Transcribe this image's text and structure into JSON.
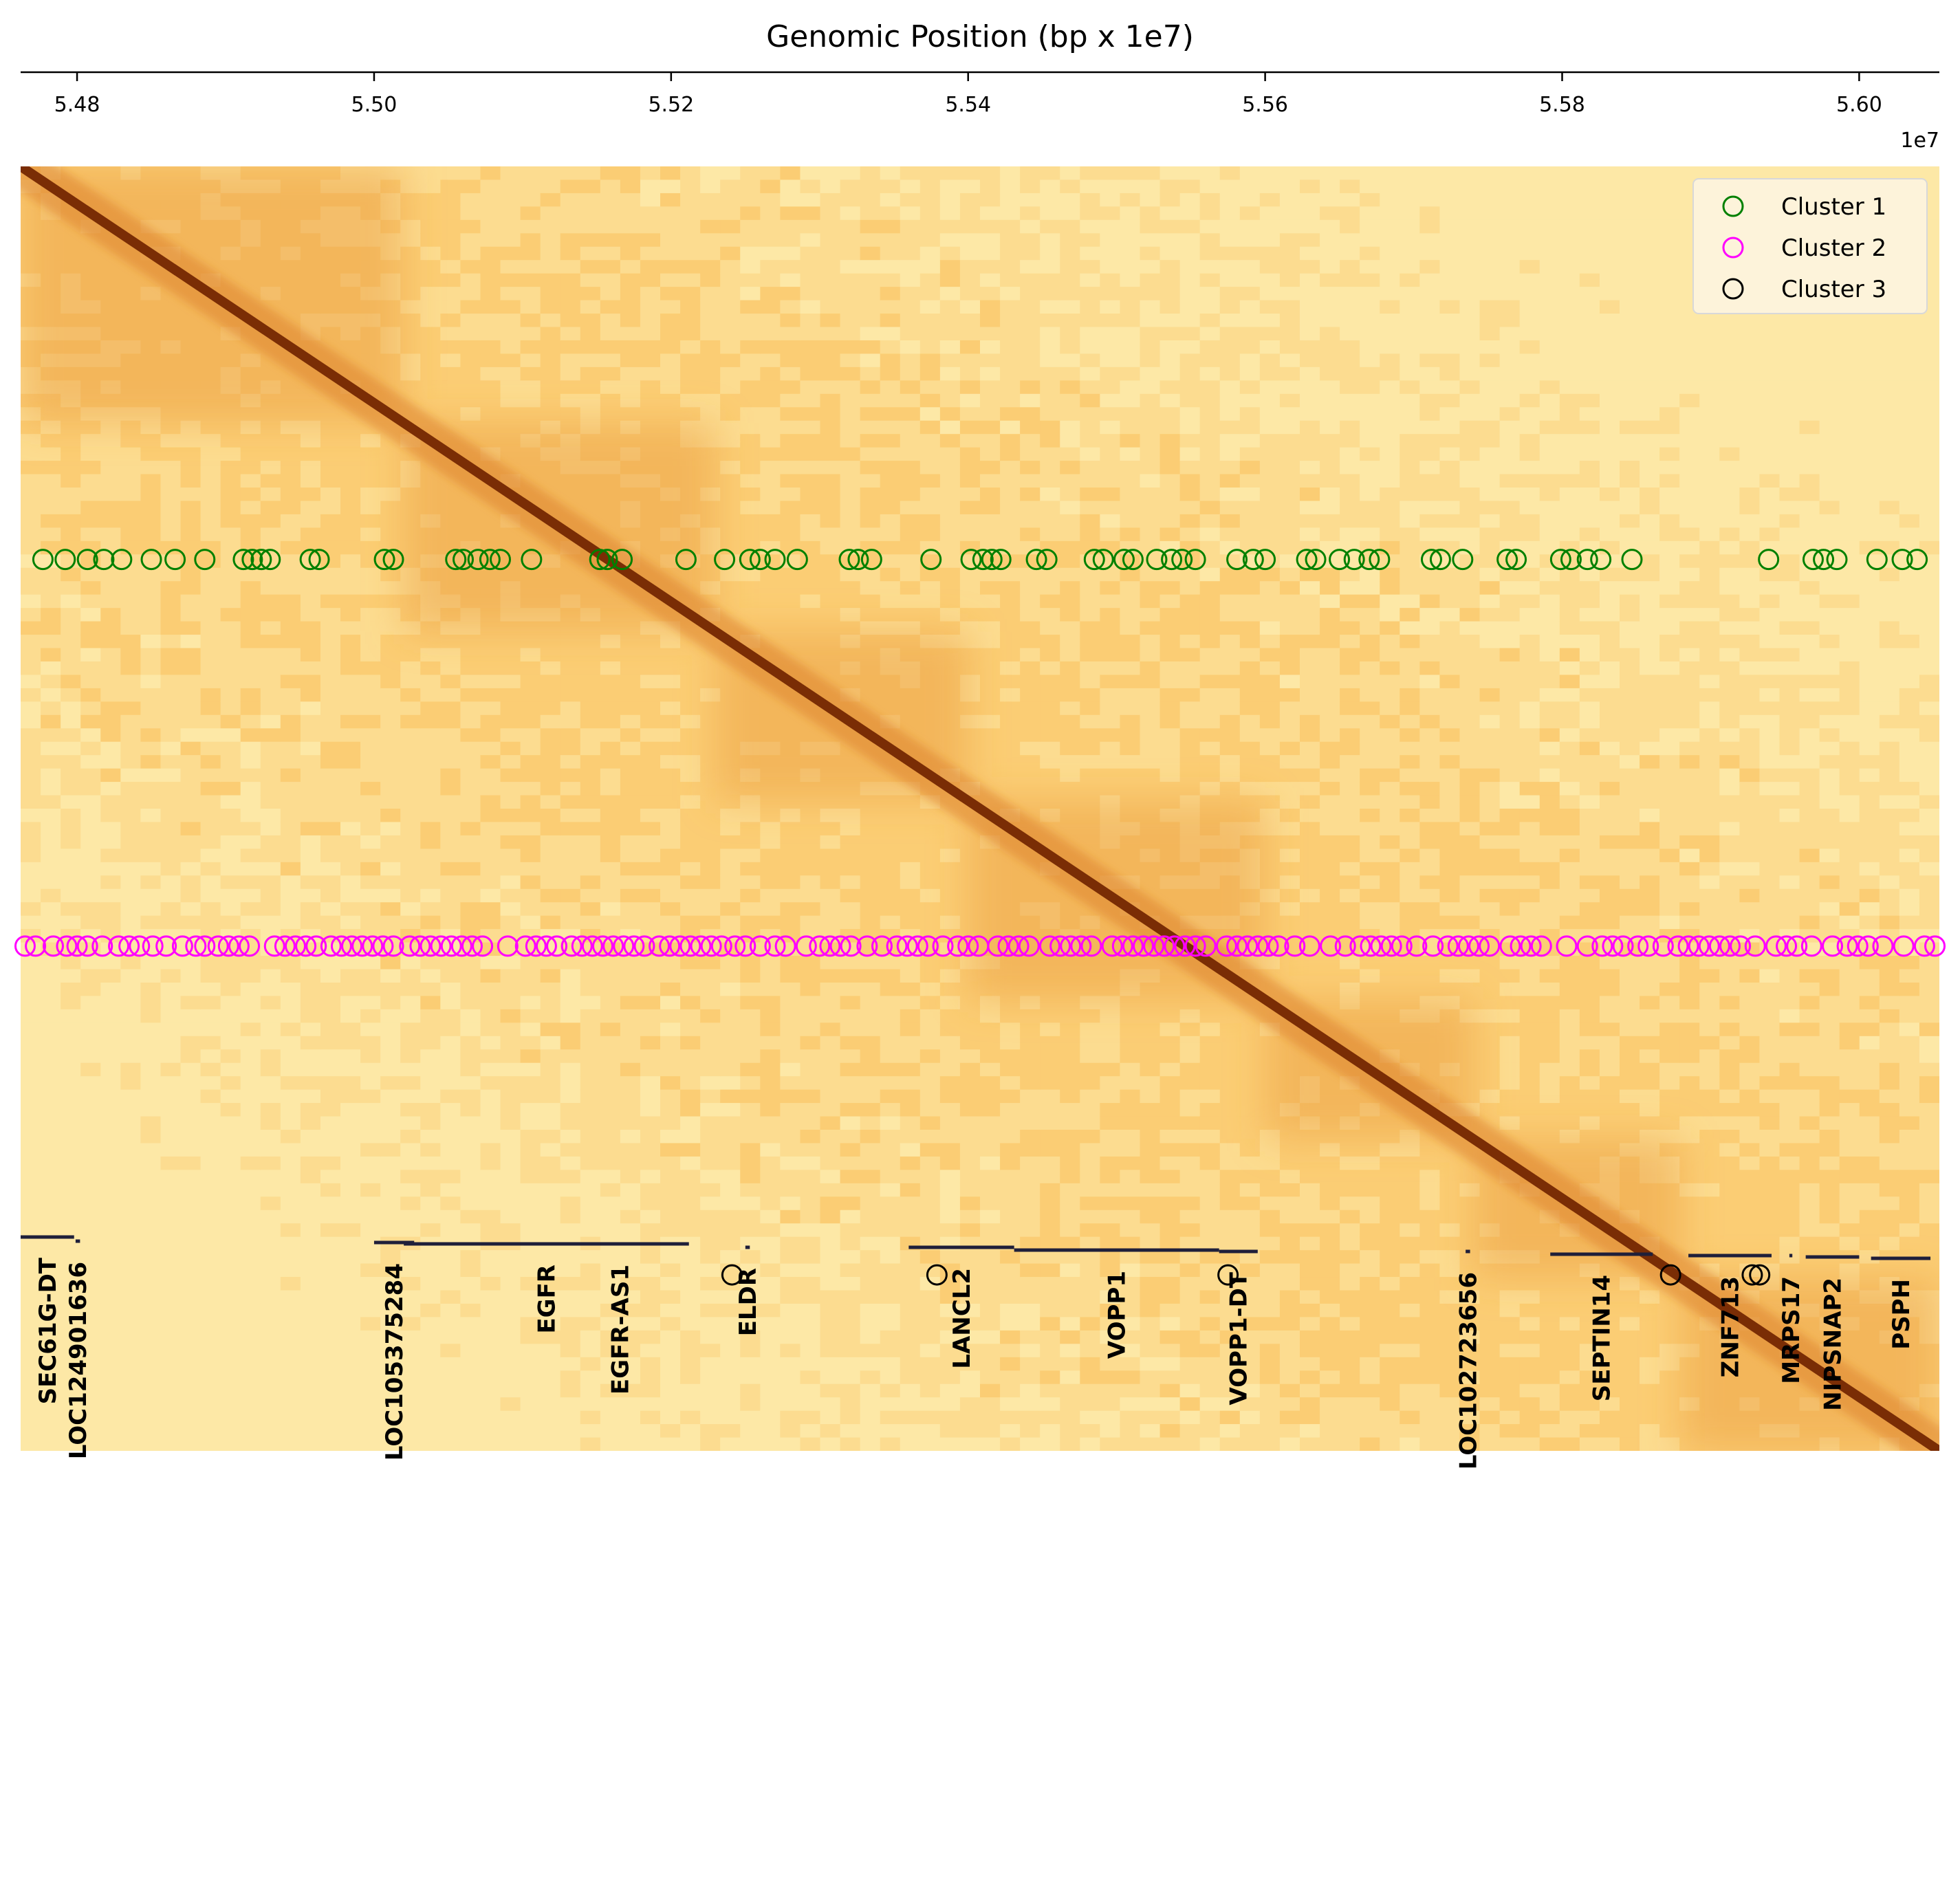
{
  "chart_data": {
    "type": "heatmap",
    "title": "Genomic Position (bp x 1e7)",
    "axis_offset_label": "1e7",
    "x_axis_position": "top",
    "xlim": [
      5.4762,
      5.6054
    ],
    "x_ticks": [
      5.48,
      5.5,
      5.52,
      5.54,
      5.56,
      5.58,
      5.6
    ],
    "x_tick_labels": [
      "5.48",
      "5.50",
      "5.52",
      "5.54",
      "5.56",
      "5.58",
      "5.60"
    ],
    "heatmap": {
      "colormap": "YlOrBr-like (light yellow to dark brown)",
      "diagonal": "strong signal along main diagonal",
      "domain_boundaries": [
        5.4762,
        5.502,
        5.523,
        5.54,
        5.56,
        5.574,
        5.588,
        5.6054
      ]
    },
    "legend": {
      "placement": "top-right",
      "entries": [
        "Cluster 1",
        "Cluster 2",
        "Cluster 3"
      ]
    },
    "series": [
      {
        "name": "Cluster 1",
        "color": "#008000",
        "marker": "open circle",
        "row": 0.306,
        "x": [
          5.4777,
          5.4792,
          5.4807,
          5.4818,
          5.483,
          5.485,
          5.4866,
          5.4886,
          5.4912,
          5.4918,
          5.4924,
          5.493,
          5.4957,
          5.4963,
          5.5007,
          5.5013,
          5.5055,
          5.506,
          5.507,
          5.5078,
          5.5085,
          5.5106,
          5.5152,
          5.5157,
          5.5167,
          5.521,
          5.5236,
          5.5253,
          5.526,
          5.527,
          5.5285,
          5.532,
          5.5326,
          5.5335,
          5.5375,
          5.5402,
          5.541,
          5.5416,
          5.5422,
          5.5446,
          5.5453,
          5.5485,
          5.5491,
          5.5505,
          5.5511,
          5.5527,
          5.5537,
          5.5544,
          5.5553,
          5.5581,
          5.5592,
          5.56,
          5.5628,
          5.5634,
          5.565,
          5.566,
          5.567,
          5.5677,
          5.5712,
          5.5718,
          5.5733,
          5.5763,
          5.5769,
          5.5799,
          5.5806,
          5.5817,
          5.5826,
          5.5847,
          5.5939,
          5.5969,
          5.5976,
          5.5985,
          5.6012,
          5.6029,
          5.6039
        ]
      },
      {
        "name": "Cluster 2",
        "color": "#ff00ff",
        "marker": "open circle",
        "row": 0.607,
        "x": [
          5.4765,
          5.4772,
          5.4784,
          5.4793,
          5.48,
          5.4807,
          5.4817,
          5.4828,
          5.4835,
          5.4842,
          5.4851,
          5.486,
          5.4871,
          5.488,
          5.4886,
          5.4895,
          5.4902,
          5.4909,
          5.4916,
          5.4933,
          5.494,
          5.4947,
          5.4954,
          5.4961,
          5.4971,
          5.4978,
          5.4985,
          5.4992,
          5.4999,
          5.5006,
          5.5013,
          5.5024,
          5.5031,
          5.5038,
          5.5045,
          5.5052,
          5.5059,
          5.5066,
          5.5073,
          5.509,
          5.5102,
          5.5109,
          5.5116,
          5.5123,
          5.5133,
          5.514,
          5.5147,
          5.5154,
          5.5161,
          5.5168,
          5.5175,
          5.5182,
          5.5192,
          5.5199,
          5.5206,
          5.5213,
          5.522,
          5.5227,
          5.5234,
          5.5243,
          5.525,
          5.526,
          5.527,
          5.5277,
          5.5291,
          5.53,
          5.5307,
          5.5314,
          5.5321,
          5.5332,
          5.5342,
          5.5352,
          5.5359,
          5.5366,
          5.5373,
          5.5383,
          5.5393,
          5.54,
          5.5407,
          5.542,
          5.5427,
          5.5434,
          5.5441,
          5.5455,
          5.5462,
          5.5469,
          5.5476,
          5.5483,
          5.5497,
          5.5504,
          5.5511,
          5.5518,
          5.5525,
          5.5532,
          5.5539,
          5.5546,
          5.5553,
          5.556,
          5.5574,
          5.5581,
          5.5588,
          5.5595,
          5.5602,
          5.5609,
          5.562,
          5.563,
          5.5644,
          5.5654,
          5.5664,
          5.5671,
          5.5678,
          5.5685,
          5.5692,
          5.5702,
          5.5713,
          5.5723,
          5.573,
          5.5737,
          5.5744,
          5.5751,
          5.5765,
          5.5772,
          5.5779,
          5.5786,
          5.5803,
          5.5817,
          5.5827,
          5.5834,
          5.5841,
          5.5851,
          5.5858,
          5.5868,
          5.5878,
          5.5885,
          5.5892,
          5.5899,
          5.5906,
          5.5913,
          5.592,
          5.593,
          5.5944,
          5.5951,
          5.5958,
          5.5968,
          5.5982,
          5.5992,
          5.5999,
          5.6006,
          5.6016,
          5.603,
          5.6044,
          5.6051
        ]
      },
      {
        "name": "Cluster 3",
        "color": "#000000",
        "marker": "open circle",
        "row": 0.863,
        "x": [
          5.5241,
          5.5379,
          5.5575,
          5.5873,
          5.5928,
          5.5933
        ]
      }
    ],
    "gene_track": {
      "genes": [
        {
          "name": "SEC61G-DT",
          "start": 5.4762,
          "end": 5.4798,
          "level": 0.21
        },
        {
          "name": "LOC124901636",
          "start": 5.4799,
          "end": 5.4802,
          "level": 0.15
        },
        {
          "name": "LOC105375284",
          "start": 5.5,
          "end": 5.5027,
          "level": 0.13
        },
        {
          "name": "EGFR",
          "start": 5.502,
          "end": 5.5212,
          "level": 0.11
        },
        {
          "name": "EGFR-AS1",
          "start": 5.5164,
          "end": 5.5167,
          "level": 0.11
        },
        {
          "name": "ELDR",
          "start": 5.525,
          "end": 5.5253,
          "level": 0.06
        },
        {
          "name": "LANCL2",
          "start": 5.536,
          "end": 5.5431,
          "level": 0.06
        },
        {
          "name": "VOPP1",
          "start": 5.5431,
          "end": 5.5569,
          "level": 0.02
        },
        {
          "name": "VOPP1-DT",
          "start": 5.5569,
          "end": 5.5595,
          "level": 0.0
        },
        {
          "name": "LOC102723656",
          "start": 5.5735,
          "end": 5.5738,
          "level": 0.0
        },
        {
          "name": "SEPTIN14",
          "start": 5.5792,
          "end": 5.5861,
          "level": -0.04
        },
        {
          "name": "ZNF713",
          "start": 5.5885,
          "end": 5.5941,
          "level": -0.06
        },
        {
          "name": "MRPS17",
          "start": 5.5953,
          "end": 5.5955,
          "level": -0.06
        },
        {
          "name": "NIPSNAP2",
          "start": 5.5964,
          "end": 5.6,
          "level": -0.08
        },
        {
          "name": "PSPH",
          "start": 5.6008,
          "end": 5.6048,
          "level": -0.1
        }
      ]
    }
  }
}
